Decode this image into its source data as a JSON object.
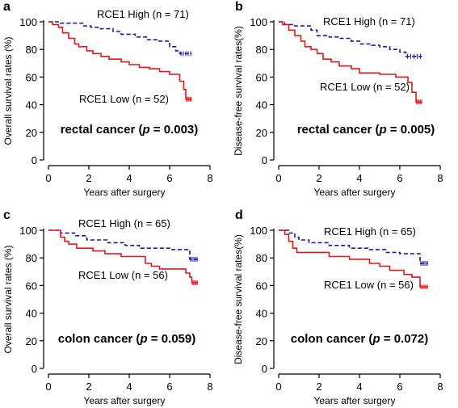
{
  "chart_data": [
    {
      "panel": "a",
      "type": "line",
      "ylabel": "Overall survival rates (%)",
      "xlabel": "Years after surgery",
      "xlim": [
        0,
        8
      ],
      "ylim": [
        0,
        100
      ],
      "xticks": [
        "0",
        "2",
        "4",
        "6",
        "8"
      ],
      "yticks": [
        "0",
        "20",
        "40",
        "60",
        "80",
        "100"
      ],
      "annotation_pre": "rectal cancer (",
      "annotation_p": "p",
      "annotation_post": " = 0.003)",
      "series": [
        {
          "name": "RCE1 High (n = 71)",
          "color": "#1a1aa6",
          "dash": "dashed",
          "points": [
            [
              0,
              100
            ],
            [
              0.6,
              100
            ],
            [
              0.6,
              99
            ],
            [
              1.7,
              99
            ],
            [
              1.7,
              97
            ],
            [
              2.1,
              97
            ],
            [
              2.1,
              96
            ],
            [
              2.5,
              96
            ],
            [
              2.5,
              95
            ],
            [
              3.2,
              95
            ],
            [
              3.2,
              93
            ],
            [
              3.6,
              93
            ],
            [
              3.6,
              91
            ],
            [
              4.3,
              91
            ],
            [
              4.3,
              89
            ],
            [
              4.9,
              89
            ],
            [
              4.9,
              87
            ],
            [
              5.4,
              87
            ],
            [
              5.4,
              86
            ],
            [
              6.0,
              86
            ],
            [
              6.0,
              82
            ],
            [
              6.3,
              82
            ],
            [
              6.3,
              79
            ],
            [
              6.5,
              79
            ],
            [
              6.5,
              77
            ],
            [
              7.1,
              77
            ]
          ]
        },
        {
          "name": "RCE1 Low (n = 52)",
          "color": "#e01818",
          "dash": "solid",
          "points": [
            [
              0,
              100
            ],
            [
              0.2,
              100
            ],
            [
              0.2,
              98
            ],
            [
              0.5,
              98
            ],
            [
              0.5,
              96
            ],
            [
              0.7,
              96
            ],
            [
              0.7,
              92
            ],
            [
              1.0,
              92
            ],
            [
              1.0,
              88
            ],
            [
              1.3,
              88
            ],
            [
              1.3,
              84
            ],
            [
              1.5,
              84
            ],
            [
              1.5,
              82
            ],
            [
              1.9,
              82
            ],
            [
              1.9,
              79
            ],
            [
              2.2,
              79
            ],
            [
              2.2,
              77
            ],
            [
              2.6,
              77
            ],
            [
              2.6,
              75
            ],
            [
              3.0,
              75
            ],
            [
              3.0,
              73
            ],
            [
              3.6,
              73
            ],
            [
              3.6,
              71
            ],
            [
              4.0,
              71
            ],
            [
              4.0,
              69
            ],
            [
              4.5,
              69
            ],
            [
              4.5,
              67
            ],
            [
              5.0,
              67
            ],
            [
              5.0,
              66
            ],
            [
              5.5,
              66
            ],
            [
              5.5,
              64
            ],
            [
              6.0,
              64
            ],
            [
              6.0,
              62
            ],
            [
              6.5,
              62
            ],
            [
              6.5,
              57
            ],
            [
              6.7,
              57
            ],
            [
              6.7,
              51
            ],
            [
              6.8,
              51
            ],
            [
              6.8,
              44
            ],
            [
              7.1,
              44
            ]
          ]
        }
      ]
    },
    {
      "panel": "b",
      "type": "line",
      "ylabel": "Disease-free survival rates(%)",
      "xlabel": "Years after surgery",
      "xlim": [
        0,
        8
      ],
      "ylim": [
        0,
        100
      ],
      "xticks": [
        "0",
        "2",
        "4",
        "6",
        "8"
      ],
      "yticks": [
        "0",
        "20",
        "40",
        "60",
        "80",
        "100"
      ],
      "annotation_pre": "rectal cancer (",
      "annotation_p": "p",
      "annotation_post": " = 0.005)",
      "series": [
        {
          "name": "RCE1 High (n = 71)",
          "color": "#1a1aa6",
          "dash": "dashed",
          "points": [
            [
              0,
              100
            ],
            [
              0.3,
              100
            ],
            [
              0.3,
              98
            ],
            [
              0.7,
              98
            ],
            [
              0.7,
              97
            ],
            [
              1.6,
              97
            ],
            [
              1.6,
              94
            ],
            [
              1.9,
              94
            ],
            [
              1.9,
              90
            ],
            [
              2.5,
              90
            ],
            [
              2.5,
              89
            ],
            [
              3.0,
              89
            ],
            [
              3.0,
              88
            ],
            [
              3.6,
              88
            ],
            [
              3.6,
              86
            ],
            [
              4.0,
              86
            ],
            [
              4.0,
              84
            ],
            [
              4.6,
              84
            ],
            [
              4.6,
              83
            ],
            [
              5.0,
              83
            ],
            [
              5.0,
              82
            ],
            [
              5.5,
              82
            ],
            [
              5.5,
              80
            ],
            [
              6.0,
              80
            ],
            [
              6.0,
              78
            ],
            [
              6.3,
              78
            ],
            [
              6.3,
              75
            ],
            [
              7.1,
              75
            ]
          ]
        },
        {
          "name": "RCE1 Low (n = 52)",
          "color": "#e01818",
          "dash": "solid",
          "points": [
            [
              0,
              100
            ],
            [
              0.2,
              100
            ],
            [
              0.2,
              98
            ],
            [
              0.5,
              98
            ],
            [
              0.5,
              94
            ],
            [
              0.8,
              94
            ],
            [
              0.8,
              90
            ],
            [
              1.1,
              90
            ],
            [
              1.1,
              86
            ],
            [
              1.3,
              86
            ],
            [
              1.3,
              82
            ],
            [
              1.6,
              82
            ],
            [
              1.6,
              80
            ],
            [
              1.9,
              80
            ],
            [
              1.9,
              77
            ],
            [
              2.2,
              77
            ],
            [
              2.2,
              73
            ],
            [
              2.6,
              73
            ],
            [
              2.6,
              71
            ],
            [
              3.0,
              71
            ],
            [
              3.0,
              68
            ],
            [
              3.6,
              68
            ],
            [
              3.6,
              66
            ],
            [
              4.0,
              66
            ],
            [
              4.0,
              63
            ],
            [
              5.0,
              63
            ],
            [
              5.0,
              62
            ],
            [
              5.8,
              62
            ],
            [
              5.8,
              60
            ],
            [
              6.4,
              60
            ],
            [
              6.4,
              56
            ],
            [
              6.6,
              56
            ],
            [
              6.6,
              49
            ],
            [
              6.8,
              49
            ],
            [
              6.8,
              42
            ],
            [
              7.1,
              42
            ]
          ]
        }
      ]
    },
    {
      "panel": "c",
      "type": "line",
      "ylabel": "Overall survival rates (%)",
      "xlabel": "Years after surgery",
      "xlim": [
        0,
        8
      ],
      "ylim": [
        0,
        100
      ],
      "xticks": [
        "0",
        "2",
        "4",
        "6",
        "8"
      ],
      "yticks": [
        "0",
        "20",
        "40",
        "60",
        "80",
        "100"
      ],
      "annotation_pre": "colon cancer (",
      "annotation_p": "p",
      "annotation_post": " = 0.059)",
      "series": [
        {
          "name": "RCE1 High (n = 65)",
          "color": "#1a1aa6",
          "dash": "dashed",
          "points": [
            [
              0,
              100
            ],
            [
              0.6,
              100
            ],
            [
              0.6,
              98
            ],
            [
              1.3,
              98
            ],
            [
              1.3,
              96
            ],
            [
              1.9,
              96
            ],
            [
              1.9,
              93
            ],
            [
              2.9,
              93
            ],
            [
              2.9,
              91
            ],
            [
              3.8,
              91
            ],
            [
              3.8,
              89
            ],
            [
              4.5,
              89
            ],
            [
              4.5,
              87
            ],
            [
              6.0,
              87
            ],
            [
              6.0,
              86
            ],
            [
              7.0,
              86
            ],
            [
              7.0,
              79
            ],
            [
              7.4,
              79
            ]
          ]
        },
        {
          "name": "RCE1 Low (n = 56)",
          "color": "#e01818",
          "dash": "solid",
          "points": [
            [
              0,
              100
            ],
            [
              0.6,
              100
            ],
            [
              0.6,
              95
            ],
            [
              0.8,
              95
            ],
            [
              0.8,
              92
            ],
            [
              1.0,
              92
            ],
            [
              1.0,
              90
            ],
            [
              1.4,
              90
            ],
            [
              1.4,
              87
            ],
            [
              2.2,
              87
            ],
            [
              2.2,
              85
            ],
            [
              2.8,
              85
            ],
            [
              2.8,
              83
            ],
            [
              3.6,
              83
            ],
            [
              3.6,
              81
            ],
            [
              4.8,
              81
            ],
            [
              4.8,
              76
            ],
            [
              5.1,
              76
            ],
            [
              5.1,
              74
            ],
            [
              5.5,
              74
            ],
            [
              5.5,
              72
            ],
            [
              6.8,
              72
            ],
            [
              6.8,
              69
            ],
            [
              7.0,
              69
            ],
            [
              7.0,
              66
            ],
            [
              7.1,
              66
            ],
            [
              7.1,
              62
            ],
            [
              7.4,
              62
            ]
          ]
        }
      ]
    },
    {
      "panel": "d",
      "type": "line",
      "ylabel": "Disease-free survival rates(%)",
      "xlabel": "Years after surgery",
      "xlim": [
        0,
        8
      ],
      "ylim": [
        0,
        100
      ],
      "xticks": [
        "0",
        "2",
        "4",
        "6",
        "8"
      ],
      "yticks": [
        "0",
        "20",
        "40",
        "60",
        "80",
        "100"
      ],
      "annotation_pre": "colon cancer (",
      "annotation_p": "p",
      "annotation_post": " = 0.072)",
      "series": [
        {
          "name": "RCE1 High (n = 65)",
          "color": "#1a1aa6",
          "dash": "dashed",
          "points": [
            [
              0,
              100
            ],
            [
              0.5,
              100
            ],
            [
              0.5,
              98
            ],
            [
              0.8,
              98
            ],
            [
              0.8,
              95
            ],
            [
              1.0,
              95
            ],
            [
              1.0,
              93
            ],
            [
              1.5,
              93
            ],
            [
              1.5,
              91
            ],
            [
              2.5,
              91
            ],
            [
              2.5,
              89
            ],
            [
              3.5,
              89
            ],
            [
              3.5,
              87
            ],
            [
              4.5,
              87
            ],
            [
              4.5,
              86
            ],
            [
              5.3,
              86
            ],
            [
              5.3,
              84
            ],
            [
              6.0,
              84
            ],
            [
              6.0,
              83
            ],
            [
              7.0,
              83
            ],
            [
              7.0,
              76
            ],
            [
              7.4,
              76
            ]
          ]
        },
        {
          "name": "RCE1 Low (n = 56)",
          "color": "#e01818",
          "dash": "solid",
          "points": [
            [
              0,
              100
            ],
            [
              0.3,
              100
            ],
            [
              0.3,
              97
            ],
            [
              0.5,
              97
            ],
            [
              0.5,
              92
            ],
            [
              0.7,
              92
            ],
            [
              0.7,
              87
            ],
            [
              0.9,
              87
            ],
            [
              0.9,
              84
            ],
            [
              2.5,
              84
            ],
            [
              2.5,
              81
            ],
            [
              3.5,
              81
            ],
            [
              3.5,
              79
            ],
            [
              4.5,
              79
            ],
            [
              4.5,
              76
            ],
            [
              5.0,
              76
            ],
            [
              5.0,
              74
            ],
            [
              5.5,
              74
            ],
            [
              5.5,
              71
            ],
            [
              6.2,
              71
            ],
            [
              6.2,
              68
            ],
            [
              6.6,
              68
            ],
            [
              6.6,
              66
            ],
            [
              7.0,
              66
            ],
            [
              7.0,
              59
            ],
            [
              7.4,
              59
            ]
          ]
        }
      ]
    }
  ],
  "panel_labels": [
    "a",
    "b",
    "c",
    "d"
  ]
}
